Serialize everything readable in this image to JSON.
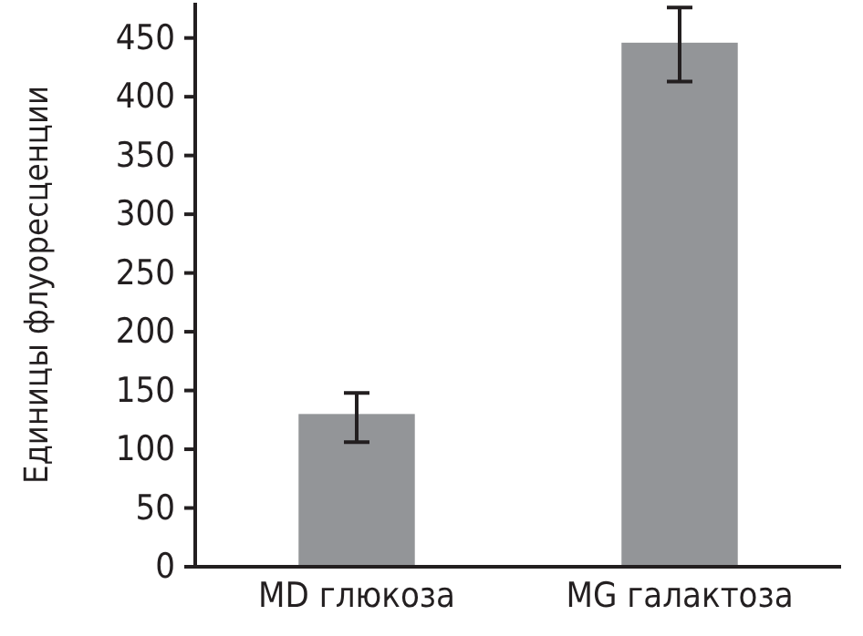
{
  "chart_data": {
    "type": "bar",
    "ylabel": "Единицы флуоресценции",
    "categories": [
      "MD глюкоза",
      "MG галактоза"
    ],
    "values": [
      130,
      446
    ],
    "errors": [
      [
        106,
        148
      ],
      [
        413,
        476
      ]
    ],
    "color": "#939598",
    "ylim": [
      0,
      480
    ],
    "yticks": [
      0,
      50,
      100,
      150,
      200,
      250,
      300,
      350,
      400,
      450
    ],
    "grid": false
  }
}
